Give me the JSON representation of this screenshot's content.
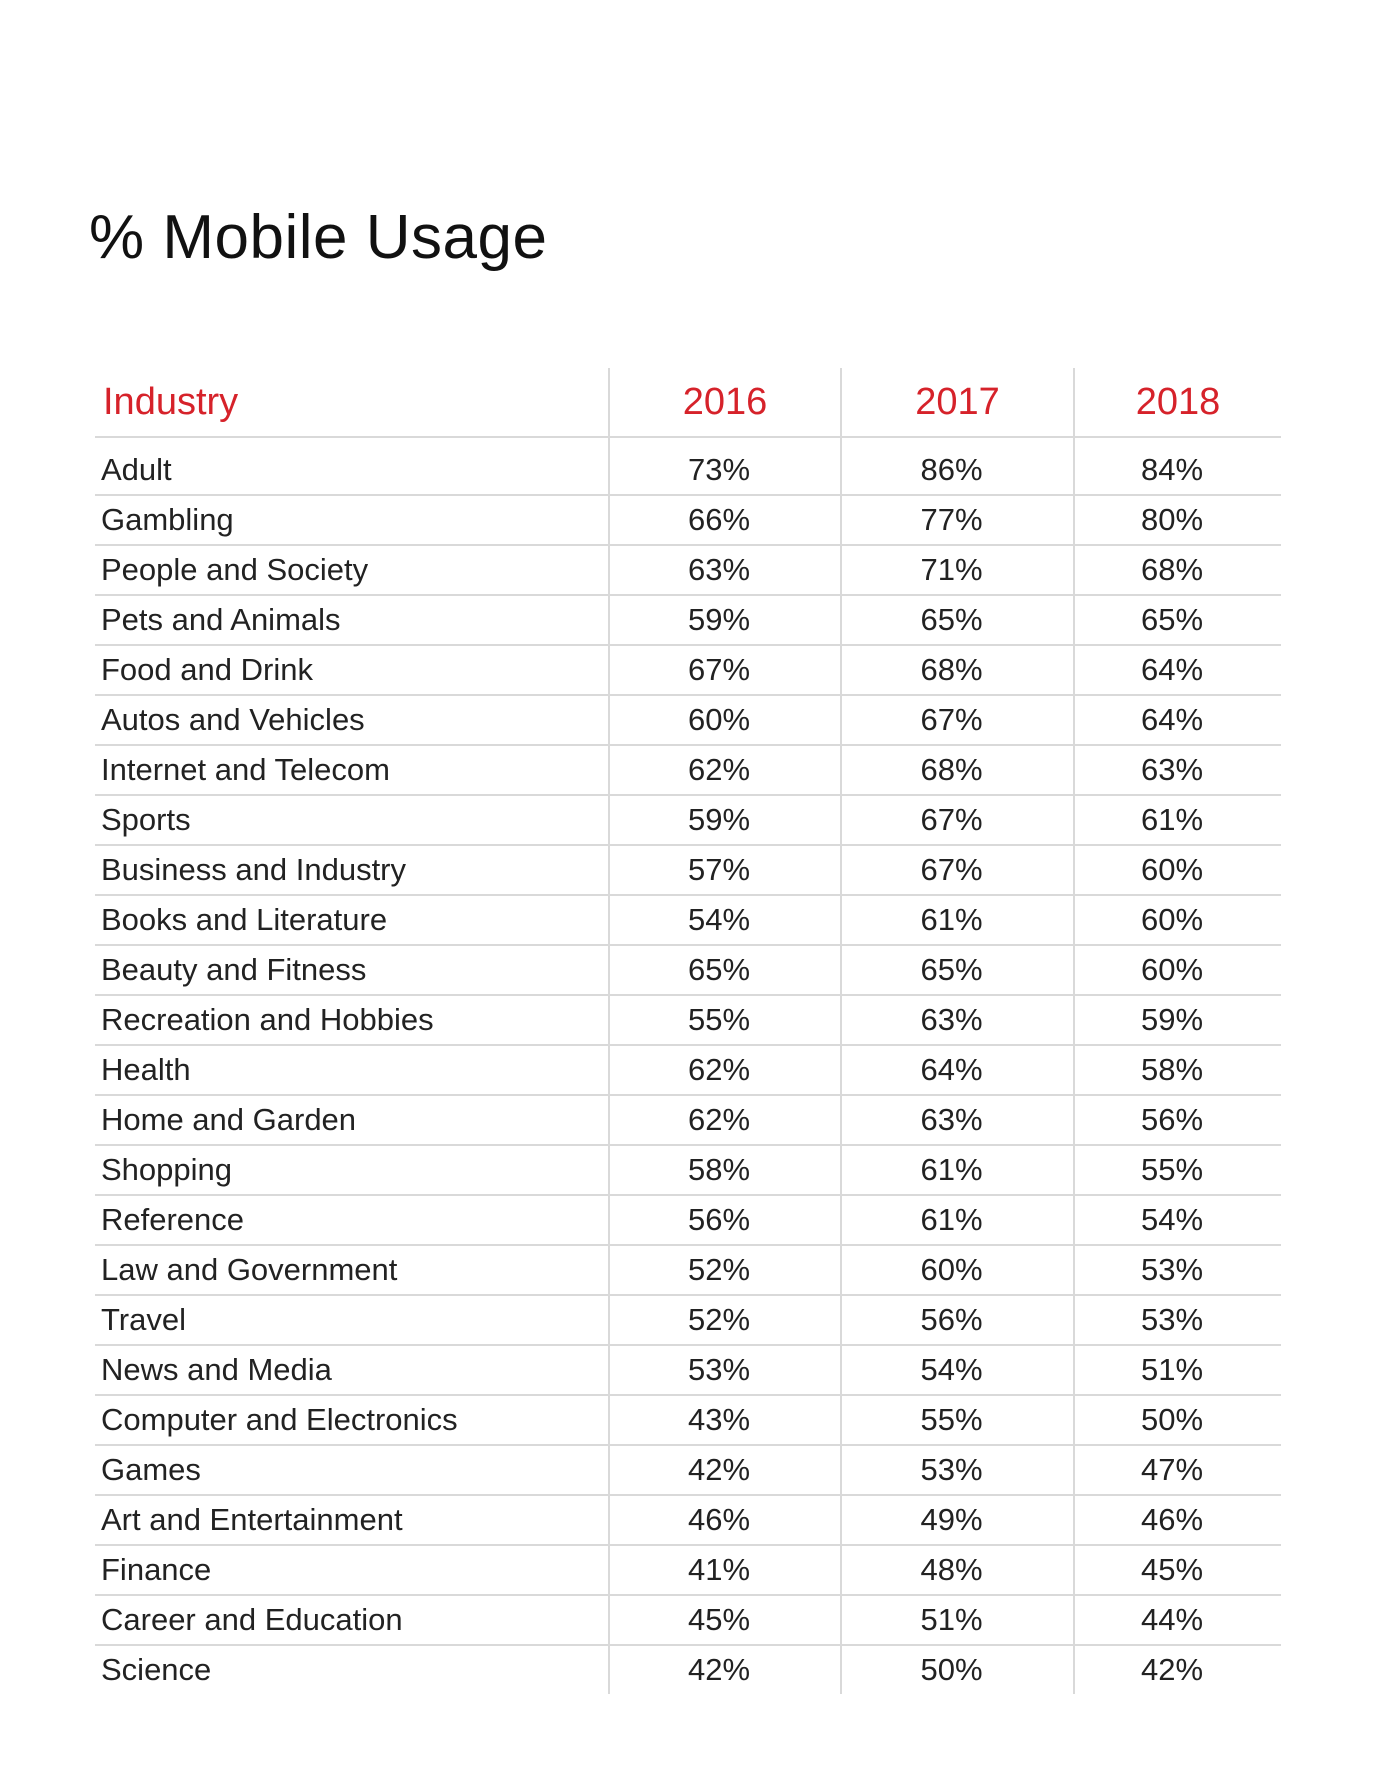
{
  "title": "% Mobile Usage",
  "columns": {
    "industry": "Industry",
    "y2016": "2016",
    "y2017": "2017",
    "y2018": "2018"
  },
  "rows": [
    {
      "industry": "Adult",
      "y2016": "73%",
      "y2017": "86%",
      "y2018": "84%"
    },
    {
      "industry": "Gambling",
      "y2016": "66%",
      "y2017": "77%",
      "y2018": "80%"
    },
    {
      "industry": "People and Society",
      "y2016": "63%",
      "y2017": "71%",
      "y2018": "68%"
    },
    {
      "industry": "Pets and Animals",
      "y2016": "59%",
      "y2017": "65%",
      "y2018": "65%"
    },
    {
      "industry": "Food and Drink",
      "y2016": "67%",
      "y2017": "68%",
      "y2018": "64%"
    },
    {
      "industry": "Autos and Vehicles",
      "y2016": "60%",
      "y2017": "67%",
      "y2018": "64%"
    },
    {
      "industry": "Internet and Telecom",
      "y2016": "62%",
      "y2017": "68%",
      "y2018": "63%"
    },
    {
      "industry": "Sports",
      "y2016": "59%",
      "y2017": "67%",
      "y2018": "61%"
    },
    {
      "industry": "Business and Industry",
      "y2016": "57%",
      "y2017": "67%",
      "y2018": "60%"
    },
    {
      "industry": "Books and Literature",
      "y2016": "54%",
      "y2017": "61%",
      "y2018": "60%"
    },
    {
      "industry": "Beauty and Fitness",
      "y2016": "65%",
      "y2017": "65%",
      "y2018": "60%"
    },
    {
      "industry": "Recreation and Hobbies",
      "y2016": "55%",
      "y2017": "63%",
      "y2018": "59%"
    },
    {
      "industry": "Health",
      "y2016": "62%",
      "y2017": "64%",
      "y2018": "58%"
    },
    {
      "industry": "Home and Garden",
      "y2016": "62%",
      "y2017": "63%",
      "y2018": "56%"
    },
    {
      "industry": "Shopping",
      "y2016": "58%",
      "y2017": "61%",
      "y2018": "55%"
    },
    {
      "industry": "Reference",
      "y2016": "56%",
      "y2017": "61%",
      "y2018": "54%"
    },
    {
      "industry": "Law and Government",
      "y2016": "52%",
      "y2017": "60%",
      "y2018": "53%"
    },
    {
      "industry": "Travel",
      "y2016": "52%",
      "y2017": "56%",
      "y2018": "53%"
    },
    {
      "industry": "News and Media",
      "y2016": "53%",
      "y2017": "54%",
      "y2018": "51%"
    },
    {
      "industry": "Computer and Electronics",
      "y2016": "43%",
      "y2017": "55%",
      "y2018": "50%"
    },
    {
      "industry": "Games",
      "y2016": "42%",
      "y2017": "53%",
      "y2018": "47%"
    },
    {
      "industry": "Art and Entertainment",
      "y2016": "46%",
      "y2017": "49%",
      "y2018": "46%"
    },
    {
      "industry": "Finance",
      "y2016": "41%",
      "y2017": "48%",
      "y2018": "45%"
    },
    {
      "industry": "Career and Education",
      "y2016": "45%",
      "y2017": "51%",
      "y2018": "44%"
    },
    {
      "industry": "Science",
      "y2016": "42%",
      "y2017": "50%",
      "y2018": "42%"
    }
  ],
  "colors": {
    "header_text": "#d6222a",
    "body_text": "#222222",
    "rule": "#d9d9d9"
  }
}
